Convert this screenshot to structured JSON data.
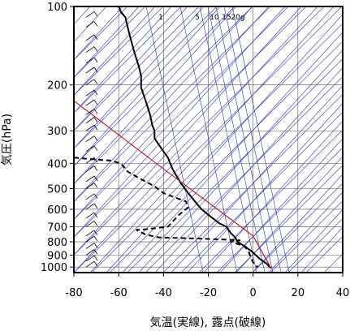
{
  "chart_data": {
    "type": "line",
    "subtype": "skew-T log-P diagram",
    "xlabel": "気温(実線), 露点(破線)",
    "ylabel": "気圧(hPa)",
    "x_ticks": [
      -80,
      -60,
      -40,
      -20,
      0,
      20,
      40
    ],
    "y_ticks": [
      100,
      200,
      300,
      400,
      500,
      600,
      700,
      800,
      900,
      1000
    ],
    "x_tick_labels": [
      "-80",
      "-60",
      "-40",
      "-20",
      "0",
      "20",
      "40"
    ],
    "y_tick_labels": [
      "100",
      "200",
      "300",
      "400",
      "500",
      "600",
      "700",
      "800",
      "900",
      "1000"
    ],
    "xlim": [
      -80,
      40
    ],
    "ylim": [
      1050,
      100
    ],
    "y_scale": "log",
    "grid": true,
    "mixing_ratio_labels": [
      "1",
      "5",
      "10",
      "15",
      "20g"
    ],
    "colors": {
      "guide_lines": "#3030c0",
      "parcel_path": "#c02020",
      "profile": "#000000"
    },
    "series": [
      {
        "role": "temperature",
        "style": "solid",
        "points": [
          [
            -60,
            100
          ],
          [
            -59,
            105
          ],
          [
            -57,
            110
          ],
          [
            -56,
            120
          ],
          [
            -55,
            130
          ],
          [
            -53,
            150
          ],
          [
            -51,
            170
          ],
          [
            -50,
            185
          ],
          [
            -50,
            205
          ],
          [
            -48,
            230
          ],
          [
            -46,
            260
          ],
          [
            -45,
            285
          ],
          [
            -44,
            300
          ],
          [
            -44,
            320
          ],
          [
            -42,
            340
          ],
          [
            -40,
            360
          ],
          [
            -38,
            380
          ],
          [
            -37,
            400
          ],
          [
            -36,
            420
          ],
          [
            -34,
            450
          ],
          [
            -32,
            480
          ],
          [
            -29,
            520
          ],
          [
            -26,
            560
          ],
          [
            -23,
            600
          ],
          [
            -19,
            640
          ],
          [
            -15,
            680
          ],
          [
            -12,
            700
          ],
          [
            -10,
            740
          ],
          [
            -8,
            770
          ],
          [
            -7,
            800
          ],
          [
            -3,
            840
          ],
          [
            0,
            880
          ],
          [
            3,
            930
          ],
          [
            6,
            970
          ],
          [
            8,
            1010
          ]
        ]
      },
      {
        "role": "dewpoint",
        "style": "dashed",
        "points": [
          [
            -80,
            380
          ],
          [
            -73,
            385
          ],
          [
            -64,
            390
          ],
          [
            -59,
            400
          ],
          [
            -56,
            430
          ],
          [
            -50,
            460
          ],
          [
            -44,
            490
          ],
          [
            -40,
            520
          ],
          [
            -35,
            540
          ],
          [
            -30,
            560
          ],
          [
            -29,
            590
          ],
          [
            -33,
            630
          ],
          [
            -36,
            670
          ],
          [
            -38,
            700
          ],
          [
            -47,
            715
          ],
          [
            -52,
            720
          ],
          [
            -48,
            750
          ],
          [
            -42,
            770
          ],
          [
            -30,
            775
          ],
          [
            -20,
            780
          ],
          [
            -12,
            785
          ],
          [
            -6,
            790
          ],
          [
            -10,
            800
          ],
          [
            -4,
            830
          ],
          [
            -2,
            870
          ],
          [
            -1,
            920
          ],
          [
            0,
            960
          ],
          [
            2,
            1000
          ]
        ]
      },
      {
        "role": "parcel",
        "style": "solid-red",
        "points": [
          [
            -80,
            230
          ],
          [
            -40,
            420
          ],
          [
            0,
            760
          ],
          [
            8,
            1010
          ]
        ]
      }
    ],
    "wind_barbs_pressures": [
      100,
      110,
      120,
      135,
      150,
      165,
      180,
      200,
      220,
      240,
      260,
      280,
      300,
      330,
      360,
      400,
      430,
      470,
      500,
      550,
      600,
      650,
      700,
      760,
      800,
      850,
      900,
      950,
      1000
    ]
  }
}
